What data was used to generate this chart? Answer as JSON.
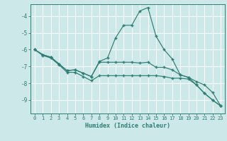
{
  "title": "",
  "xlabel": "Humidex (Indice chaleur)",
  "background_color": "#cce8e8",
  "grid_color": "#ffffff",
  "line_color": "#2e7d72",
  "x": [
    0,
    1,
    2,
    3,
    4,
    5,
    6,
    7,
    8,
    9,
    10,
    11,
    12,
    13,
    14,
    15,
    16,
    17,
    18,
    19,
    20,
    21,
    22,
    23
  ],
  "series": [
    [
      -6.0,
      -6.3,
      -6.45,
      -6.85,
      -7.25,
      -7.2,
      -7.4,
      -7.6,
      -6.7,
      -6.5,
      -5.3,
      -4.55,
      -4.55,
      -3.7,
      -3.5,
      -5.2,
      -6.0,
      -6.55,
      -7.5,
      -7.65,
      -8.1,
      -8.6,
      -9.0,
      -9.35
    ],
    [
      -6.0,
      -6.3,
      -6.45,
      -6.85,
      -7.25,
      -7.2,
      -7.4,
      -7.6,
      -6.75,
      -6.75,
      -6.75,
      -6.75,
      -6.75,
      -6.8,
      -6.75,
      -7.05,
      -7.05,
      -7.2,
      -7.5,
      -7.65,
      -7.9,
      -8.1,
      -8.55,
      -9.35
    ],
    [
      -6.0,
      -6.35,
      -6.5,
      -6.9,
      -7.35,
      -7.35,
      -7.6,
      -7.85,
      -7.55,
      -7.55,
      -7.55,
      -7.55,
      -7.55,
      -7.55,
      -7.55,
      -7.55,
      -7.6,
      -7.7,
      -7.7,
      -7.75,
      -8.1,
      -8.6,
      -9.0,
      -9.35
    ]
  ],
  "ylim": [
    -9.8,
    -3.3
  ],
  "xlim": [
    -0.5,
    23.5
  ],
  "yticks": [
    -9,
    -8,
    -7,
    -6,
    -5,
    -4
  ],
  "xticks": [
    0,
    1,
    2,
    3,
    4,
    5,
    6,
    7,
    8,
    9,
    10,
    11,
    12,
    13,
    14,
    15,
    16,
    17,
    18,
    19,
    20,
    21,
    22,
    23
  ]
}
